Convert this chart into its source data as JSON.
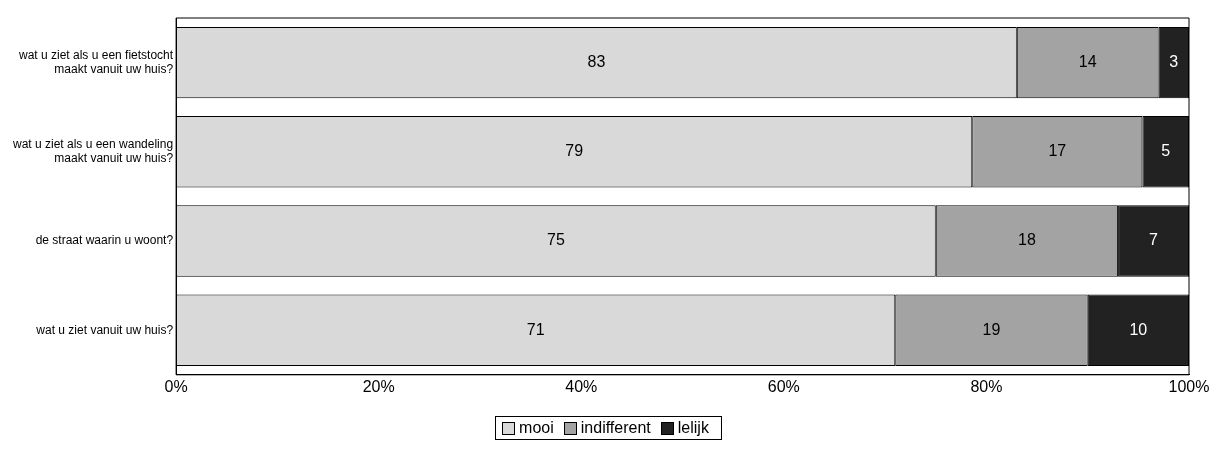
{
  "chart_data": {
    "type": "bar",
    "orientation": "horizontal",
    "stacked": true,
    "categories": [
      "wat u ziet als u een fietstocht maakt vanuit uw huis?",
      "wat u ziet als u een wandeling maakt vanuit uw huis?",
      "de straat waarin u woont?",
      "wat u ziet vanuit uw huis?"
    ],
    "series": [
      {
        "name": "mooi",
        "color": "#d9d9d9",
        "values": [
          83,
          78.6,
          75,
          71
        ],
        "value_labels": [
          "83",
          "79",
          "75",
          "71"
        ]
      },
      {
        "name": "indifferent",
        "color": "#a3a3a3",
        "values": [
          14,
          16.8,
          18,
          19
        ],
        "value_labels": [
          "14",
          "17",
          "18",
          "19"
        ]
      },
      {
        "name": "lelijk",
        "color": "#222222",
        "values": [
          3,
          4.6,
          7,
          10
        ],
        "value_labels": [
          "3",
          "5",
          "7",
          "10"
        ]
      }
    ],
    "xlim": [
      0,
      100
    ],
    "xticks": [
      {
        "value": 0,
        "label": "0%"
      },
      {
        "value": 20,
        "label": "20%"
      },
      {
        "value": 40,
        "label": "40%"
      },
      {
        "value": 60,
        "label": "60%"
      },
      {
        "value": 80,
        "label": "80%"
      },
      {
        "value": 100,
        "label": "100%"
      }
    ],
    "grid": false,
    "legend": "bottom"
  }
}
